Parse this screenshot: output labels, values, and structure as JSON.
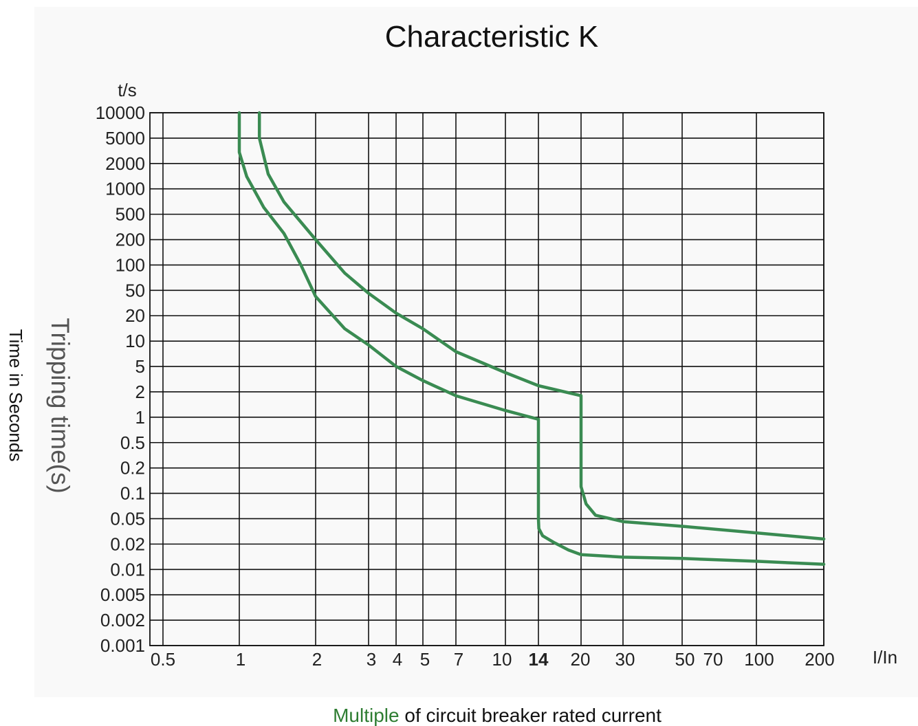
{
  "chart_data": {
    "type": "line",
    "title": "Characteristic K",
    "y_unit": "t/s",
    "x_unit": "I/In",
    "ylabel_inner": "Tripping time(s)",
    "ylabel_outer": "Time in Seconds",
    "xlabel": {
      "highlight": "Multiple",
      "rest": " of circuit breaker rated current",
      "highlight_color": "#2e7d32"
    },
    "y_scale": "log",
    "ylim": [
      0.001,
      10000
    ],
    "y_ticks": [
      {
        "label": "10000",
        "value": 10000
      },
      {
        "label": "5000",
        "value": 5000
      },
      {
        "label": "2000",
        "value": 2000
      },
      {
        "label": "1000",
        "value": 1000
      },
      {
        "label": "500",
        "value": 500
      },
      {
        "label": "200",
        "value": 200
      },
      {
        "label": "100",
        "value": 100
      },
      {
        "label": "50",
        "value": 50
      },
      {
        "label": "20",
        "value": 20
      },
      {
        "label": "10",
        "value": 10
      },
      {
        "label": "5",
        "value": 5
      },
      {
        "label": "2",
        "value": 2
      },
      {
        "label": "1",
        "value": 1
      },
      {
        "label": "0.5",
        "value": 0.5
      },
      {
        "label": "0.2",
        "value": 0.2
      },
      {
        "label": "0.1",
        "value": 0.1
      },
      {
        "label": "0.05",
        "value": 0.05
      },
      {
        "label": "0.02",
        "value": 0.02
      },
      {
        "label": "0.01",
        "value": 0.01
      },
      {
        "label": "0.005",
        "value": 0.005
      },
      {
        "label": "0.002",
        "value": 0.002
      },
      {
        "label": "0.001",
        "value": 0.001
      }
    ],
    "x_ticks": [
      {
        "label": "0.5",
        "value": 0.5
      },
      {
        "label": "1",
        "value": 1
      },
      {
        "label": "2",
        "value": 2
      },
      {
        "label": "3",
        "value": 3
      },
      {
        "label": "4",
        "value": 4
      },
      {
        "label": "5",
        "value": 5
      },
      {
        "label": "7",
        "value": 7
      },
      {
        "label": "10",
        "value": 10
      },
      {
        "label": "14",
        "value": 14,
        "bold": true
      },
      {
        "label": "20",
        "value": 20
      },
      {
        "label": "30",
        "value": 30
      },
      {
        "label": "50",
        "value": 50
      },
      {
        "label": "70",
        "value": 70
      },
      {
        "label": "100",
        "value": 100
      },
      {
        "label": "200",
        "value": 200
      }
    ],
    "xlim": [
      0.45,
      200
    ],
    "grid": true,
    "line_color": "#3a8b52",
    "series": [
      {
        "points": [
          [
            1.0,
            10000
          ],
          [
            1.0,
            3000
          ],
          [
            1.07,
            1400
          ],
          [
            1.25,
            600
          ],
          [
            1.5,
            250
          ],
          [
            1.75,
            100
          ],
          [
            2.0,
            40
          ],
          [
            2.5,
            14
          ],
          [
            3.0,
            9
          ],
          [
            4.0,
            5
          ],
          [
            5.0,
            3
          ],
          [
            7.0,
            1.8
          ],
          [
            10.0,
            1.2
          ],
          [
            13.9,
            0.95
          ],
          [
            14.0,
            0.95
          ],
          [
            14.0,
            0.05
          ],
          [
            14.05,
            0.035
          ],
          [
            14.5,
            0.027
          ],
          [
            16.0,
            0.021
          ],
          [
            18.0,
            0.017
          ],
          [
            20.0,
            0.015
          ],
          [
            30.0,
            0.014
          ],
          [
            50.0,
            0.0135
          ],
          [
            100.0,
            0.0125
          ],
          [
            200.0,
            0.0115
          ]
        ]
      },
      {
        "points": [
          [
            1.2,
            10000
          ],
          [
            1.2,
            5000
          ],
          [
            1.3,
            1500
          ],
          [
            1.5,
            700
          ],
          [
            2.0,
            200
          ],
          [
            2.5,
            80
          ],
          [
            3.0,
            45
          ],
          [
            4.0,
            22
          ],
          [
            5.0,
            14
          ],
          [
            7.0,
            7.5
          ],
          [
            10.0,
            4
          ],
          [
            14.0,
            2.5
          ],
          [
            20.0,
            1.8
          ],
          [
            20.0,
            0.12
          ],
          [
            21.0,
            0.075
          ],
          [
            23.0,
            0.055
          ],
          [
            30.0,
            0.045
          ],
          [
            50.0,
            0.038
          ],
          [
            100.0,
            0.03
          ],
          [
            200.0,
            0.024
          ]
        ]
      }
    ]
  }
}
